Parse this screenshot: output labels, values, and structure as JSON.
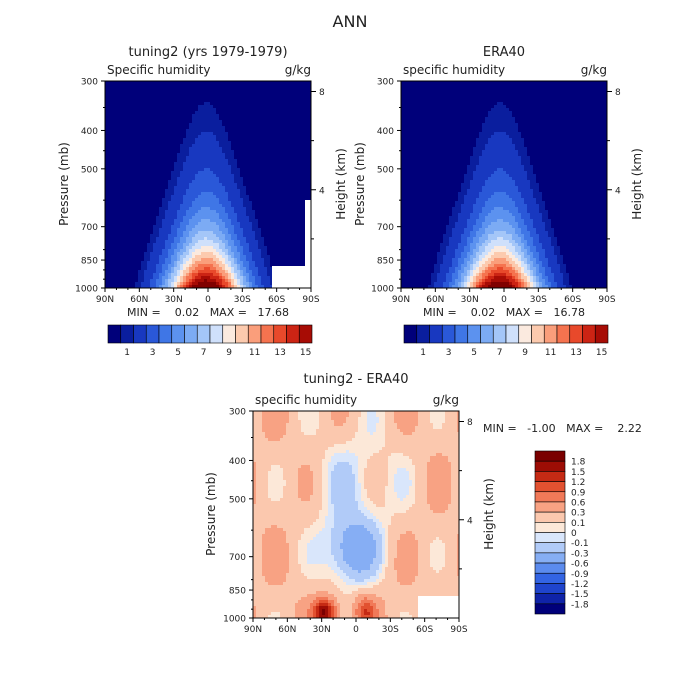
{
  "page_title": "ANN",
  "colors": {
    "seq": [
      "#00007a",
      "#0a1e9e",
      "#1838c0",
      "#2a58d8",
      "#3f76e6",
      "#5c92ef",
      "#7cabf4",
      "#a4c6f8",
      "#cfe0fb",
      "#fbeadf",
      "#fccaae",
      "#fa9e7b",
      "#f5734f",
      "#e8492b",
      "#cc2414",
      "#a70c05",
      "#800000"
    ],
    "diff": [
      "#00007a",
      "#0f23a8",
      "#1f44cc",
      "#3364e3",
      "#5b8bee",
      "#86aef4",
      "#b1cbf8",
      "#d9e6fb",
      "#fce8d8",
      "#fbc8ae",
      "#f8a283",
      "#f17958",
      "#e25130",
      "#c52a14",
      "#9d0d05",
      "#7a0000"
    ]
  },
  "chart_data": [
    {
      "id": "model",
      "type": "contour",
      "title": "tuning2 (yrs 1979-1979)",
      "left_label": "Specific humidity",
      "right_label": "g/kg",
      "xlabel": "",
      "ylabel": "Pressure (mb)",
      "y2label": "Height (km)",
      "x_ticks": [
        "90N",
        "60N",
        "30N",
        "0",
        "30S",
        "60S",
        "90S"
      ],
      "y_ticks": [
        "300",
        "400",
        "500",
        "700",
        "850",
        "1000"
      ],
      "y2_ticks": [
        "8",
        "4"
      ],
      "stats": "MIN =    0.02   MAX =   17.68",
      "colorbar_labels": [
        "1",
        "3",
        "5",
        "7",
        "9",
        "11",
        "13",
        "15"
      ],
      "max_value": 17.68,
      "min_value": 0.02
    },
    {
      "id": "obs",
      "type": "contour",
      "title": "ERA40",
      "left_label": "specific humidity",
      "right_label": "g/kg",
      "xlabel": "",
      "ylabel": "Pressure (mb)",
      "y2label": "Height (km)",
      "x_ticks": [
        "90N",
        "60N",
        "30N",
        "0",
        "30S",
        "60S",
        "90S"
      ],
      "y_ticks": [
        "300",
        "400",
        "500",
        "700",
        "850",
        "1000"
      ],
      "y2_ticks": [
        "8",
        "4"
      ],
      "stats": "MIN =    0.02   MAX =   16.78",
      "colorbar_labels": [
        "1",
        "3",
        "5",
        "7",
        "9",
        "11",
        "13",
        "15"
      ],
      "max_value": 16.78,
      "min_value": 0.02
    },
    {
      "id": "diff",
      "type": "contour",
      "title": "tuning2 - ERA40",
      "left_label": "specific humidity",
      "right_label": "g/kg",
      "xlabel": "",
      "ylabel": "Pressure (mb)",
      "y2label": "Height (km)",
      "x_ticks": [
        "90N",
        "60N",
        "30N",
        "0",
        "30S",
        "60S",
        "90S"
      ],
      "y_ticks": [
        "300",
        "400",
        "500",
        "700",
        "850",
        "1000"
      ],
      "y2_ticks": [
        "8",
        "4"
      ],
      "stats": "MIN =   -1.00   MAX =    2.22",
      "colorbar_labels": [
        "1.8",
        "1.5",
        "1.2",
        "0.9",
        "0.6",
        "0.3",
        "0.1",
        "0",
        "-0.1",
        "-0.3",
        "-0.6",
        "-0.9",
        "-1.2",
        "-1.5",
        "-1.8"
      ],
      "max_value": 2.22,
      "min_value": -1.0
    }
  ]
}
